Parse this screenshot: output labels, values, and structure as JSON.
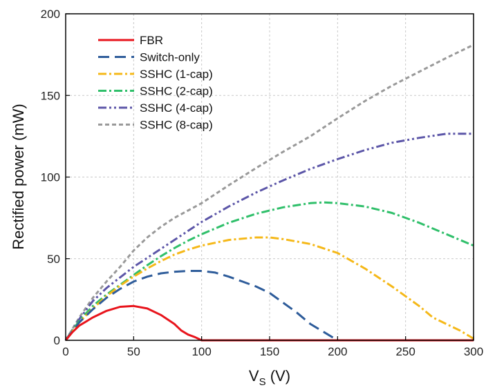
{
  "chart_data": {
    "type": "line",
    "xlabel_main": "V",
    "xlabel_sub": "S",
    "xlabel_unit": " (V)",
    "ylabel": "Rectified power (mW)",
    "xlim": [
      0,
      300
    ],
    "ylim": [
      0,
      200
    ],
    "xticks": [
      0,
      50,
      100,
      150,
      200,
      250,
      300
    ],
    "yticks": [
      0,
      50,
      100,
      150,
      200
    ],
    "grid": true,
    "legend_position": "top-left",
    "series": [
      {
        "name": "FBR",
        "color": "#e8141c",
        "dash": "",
        "points": [
          [
            0,
            0
          ],
          [
            5,
            5
          ],
          [
            10,
            9
          ],
          [
            20,
            14
          ],
          [
            30,
            18
          ],
          [
            40,
            20.5
          ],
          [
            50,
            21
          ],
          [
            60,
            19.5
          ],
          [
            70,
            15.5
          ],
          [
            80,
            10
          ],
          [
            85,
            6
          ],
          [
            90,
            3.5
          ],
          [
            95,
            2
          ],
          [
            100,
            0
          ],
          [
            150,
            0
          ],
          [
            200,
            0
          ],
          [
            250,
            0
          ],
          [
            300,
            0
          ]
        ]
      },
      {
        "name": "Switch-only",
        "color": "#2e5c9a",
        "dash": "16 8",
        "points": [
          [
            0,
            0
          ],
          [
            10,
            11
          ],
          [
            20,
            19
          ],
          [
            30,
            26
          ],
          [
            40,
            31.5
          ],
          [
            50,
            36
          ],
          [
            60,
            39
          ],
          [
            70,
            41
          ],
          [
            80,
            42
          ],
          [
            90,
            42.5
          ],
          [
            100,
            42.5
          ],
          [
            110,
            41.5
          ],
          [
            120,
            39
          ],
          [
            130,
            36
          ],
          [
            140,
            33
          ],
          [
            150,
            29
          ],
          [
            160,
            23
          ],
          [
            170,
            17
          ],
          [
            180,
            10
          ],
          [
            190,
            5
          ],
          [
            200,
            0
          ],
          [
            250,
            0
          ],
          [
            300,
            0
          ]
        ]
      },
      {
        "name": "SSHC (1-cap)",
        "color": "#f5b818",
        "dash": "12 4 3 4",
        "points": [
          [
            0,
            0
          ],
          [
            10,
            11
          ],
          [
            20,
            19.5
          ],
          [
            30,
            27
          ],
          [
            40,
            33.5
          ],
          [
            50,
            39
          ],
          [
            60,
            44
          ],
          [
            70,
            48.5
          ],
          [
            80,
            52.5
          ],
          [
            90,
            55.5
          ],
          [
            100,
            58
          ],
          [
            120,
            61.5
          ],
          [
            140,
            63
          ],
          [
            150,
            63
          ],
          [
            160,
            62
          ],
          [
            180,
            59
          ],
          [
            200,
            53.5
          ],
          [
            220,
            44
          ],
          [
            240,
            33
          ],
          [
            260,
            21
          ],
          [
            270,
            14
          ],
          [
            280,
            10
          ],
          [
            290,
            6
          ],
          [
            300,
            1
          ]
        ]
      },
      {
        "name": "SSHC (2-cap)",
        "color": "#2fbf6a",
        "dash": "12 4 3 4",
        "points": [
          [
            0,
            0
          ],
          [
            10,
            12
          ],
          [
            20,
            21
          ],
          [
            30,
            28
          ],
          [
            40,
            34
          ],
          [
            50,
            40
          ],
          [
            60,
            46
          ],
          [
            70,
            51.5
          ],
          [
            80,
            56.5
          ],
          [
            90,
            61
          ],
          [
            100,
            65
          ],
          [
            120,
            72
          ],
          [
            140,
            77.5
          ],
          [
            160,
            81.5
          ],
          [
            180,
            84
          ],
          [
            190,
            84.5
          ],
          [
            200,
            84
          ],
          [
            220,
            82
          ],
          [
            240,
            78
          ],
          [
            260,
            72
          ],
          [
            280,
            65
          ],
          [
            300,
            58
          ]
        ]
      },
      {
        "name": "SSHC (4-cap)",
        "color": "#5c56a8",
        "dash": "12 4 3 4 3 4",
        "points": [
          [
            0,
            0
          ],
          [
            10,
            13
          ],
          [
            20,
            24
          ],
          [
            30,
            32
          ],
          [
            40,
            38.5
          ],
          [
            50,
            45
          ],
          [
            60,
            50.5
          ],
          [
            70,
            56
          ],
          [
            80,
            61.5
          ],
          [
            90,
            67
          ],
          [
            100,
            72.5
          ],
          [
            120,
            82
          ],
          [
            140,
            90.5
          ],
          [
            160,
            98
          ],
          [
            180,
            105
          ],
          [
            200,
            111
          ],
          [
            220,
            116.5
          ],
          [
            240,
            121
          ],
          [
            260,
            124
          ],
          [
            280,
            126.5
          ],
          [
            300,
            126.5
          ]
        ]
      },
      {
        "name": "SSHC (8-cap)",
        "color": "#999999",
        "dash": "6 4",
        "points": [
          [
            0,
            0
          ],
          [
            10,
            14
          ],
          [
            20,
            26
          ],
          [
            30,
            36
          ],
          [
            40,
            45
          ],
          [
            50,
            55
          ],
          [
            60,
            63
          ],
          [
            70,
            69.5
          ],
          [
            80,
            75
          ],
          [
            90,
            79.5
          ],
          [
            100,
            84
          ],
          [
            120,
            95
          ],
          [
            140,
            105.5
          ],
          [
            160,
            115.5
          ],
          [
            180,
            125
          ],
          [
            200,
            136
          ],
          [
            220,
            146.5
          ],
          [
            240,
            156
          ],
          [
            260,
            164.5
          ],
          [
            280,
            173
          ],
          [
            300,
            181
          ]
        ]
      }
    ]
  }
}
